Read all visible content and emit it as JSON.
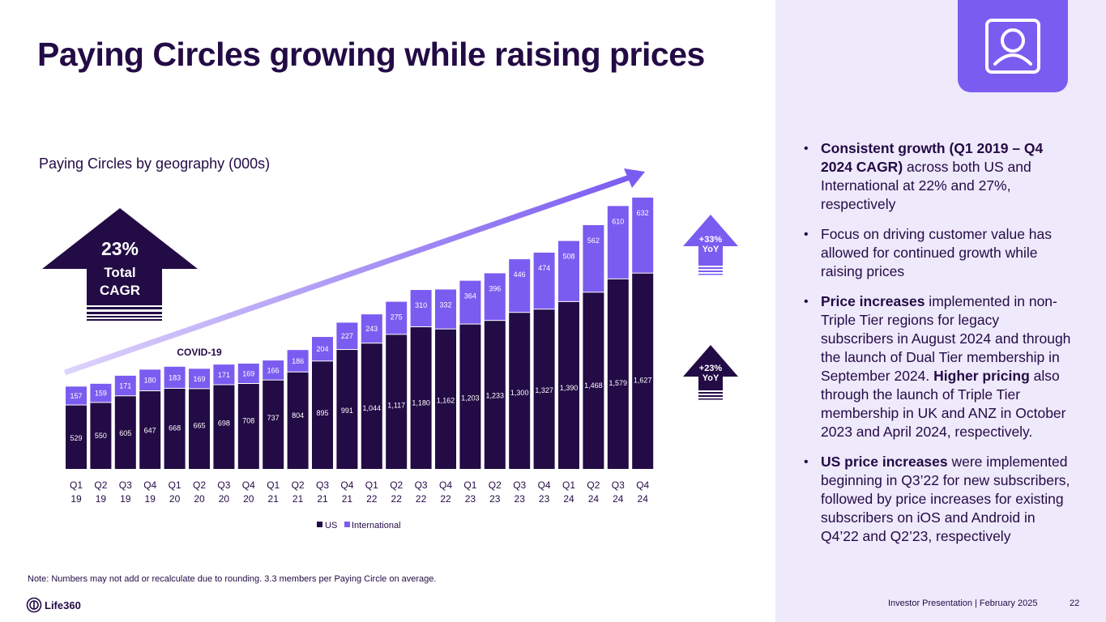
{
  "slide": {
    "title": "Paying Circles growing while raising prices",
    "chart_subtitle": "Paying Circles by geography (000s)",
    "cagr_badge": {
      "value": "23%",
      "line1": "Total",
      "line2": "CAGR"
    },
    "covid_label": "COVID-19",
    "intl_yoy_badge": {
      "value": "+33%",
      "label": "YoY"
    },
    "us_yoy_badge": {
      "value": "+23%",
      "label": "YoY"
    },
    "note": "Note: Numbers may not add or recalculate due to rounding. 3.3 members per Paying Circle on average.",
    "logo_text": "Life360",
    "footer": "Investor Presentation  | February 2025",
    "page_number": "22",
    "colors": {
      "us": "#230b45",
      "international": "#7b5cf0",
      "panel": "#efe9fc",
      "trend": "#c9bdf7"
    }
  },
  "bullets": [
    {
      "bold": "Consistent growth (Q1 2019 – Q4 2024 CAGR)",
      "text": " across both US and International at 22% and 27%, respectively"
    },
    {
      "bold": "",
      "text": "Focus on driving customer value has allowed for continued growth while raising prices"
    },
    {
      "bold": "Price increases",
      "text": " implemented in non-Triple Tier regions for legacy subscribers in August 2024 and through the launch of Dual Tier membership in September 2024.",
      "bold2": "Higher pricing",
      "text2": " also through the launch of Triple Tier membership in UK and ANZ in October 2023 and April 2024, respectively."
    },
    {
      "bold": "US price increases",
      "text": " were implemented beginning in Q3’22 for new subscribers, followed by price increases for existing subscribers on iOS and Android in Q4’22 and Q2’23, respectively"
    }
  ],
  "chart_data": {
    "type": "bar",
    "stacked": true,
    "title": "Paying Circles by geography (000s)",
    "xlabel": "",
    "ylabel": "",
    "categories": [
      "Q1 19",
      "Q2 19",
      "Q3 19",
      "Q4 19",
      "Q1 20",
      "Q2 20",
      "Q3 20",
      "Q4 20",
      "Q1 21",
      "Q2 21",
      "Q3 21",
      "Q4 21",
      "Q1 22",
      "Q2 22",
      "Q3 22",
      "Q4 22",
      "Q1 23",
      "Q2 23",
      "Q3 23",
      "Q4 23",
      "Q1 24",
      "Q2 24",
      "Q3 24",
      "Q4 24"
    ],
    "series": [
      {
        "name": "US",
        "values": [
          529,
          550,
          605,
          647,
          668,
          665,
          698,
          708,
          737,
          804,
          895,
          991,
          1044,
          1117,
          1180,
          1162,
          1203,
          1233,
          1300,
          1327,
          1390,
          1468,
          1579,
          1627
        ],
        "labels": [
          "529",
          "550",
          "605",
          "647",
          "668",
          "665",
          "698",
          "708",
          "737",
          "804",
          "895",
          "991",
          "1,044",
          "1,117",
          "1,180",
          "1,162",
          "1,203",
          "1,233",
          "1,300",
          "1,327",
          "1,390",
          "1,468",
          "1,579",
          "1,627"
        ]
      },
      {
        "name": "International",
        "values": [
          157,
          159,
          171,
          180,
          183,
          169,
          171,
          169,
          166,
          186,
          204,
          227,
          243,
          275,
          310,
          332,
          364,
          396,
          446,
          474,
          508,
          562,
          610,
          632
        ],
        "labels": [
          "157",
          "159",
          "171",
          "180",
          "183",
          "169",
          "171",
          "169",
          "166",
          "186",
          "204",
          "227",
          "243",
          "275",
          "310",
          "332",
          "364",
          "396",
          "446",
          "474",
          "508",
          "562",
          "610",
          "632"
        ]
      }
    ],
    "ylim": [
      0,
      2300
    ],
    "grid": false,
    "axis_visible": false,
    "legend": {
      "position": "bottom",
      "entries": [
        "US",
        "International"
      ]
    },
    "annotations": [
      "COVID-19",
      "23% Total CAGR",
      "+33% YoY",
      "+23% YoY"
    ]
  }
}
